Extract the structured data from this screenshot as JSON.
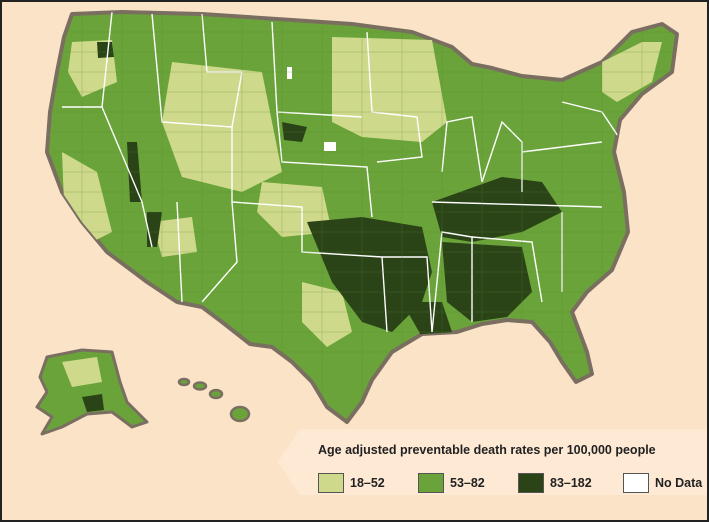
{
  "legend": {
    "title": "Age adjusted preventable death rates per 100,000 people",
    "items": [
      {
        "label": "18–52",
        "color": "#cfd98c"
      },
      {
        "label": "53–82",
        "color": "#6aa33a"
      },
      {
        "label": "83–182",
        "color": "#2a4317"
      },
      {
        "label": "No Data",
        "color": "#ffffff"
      }
    ]
  },
  "colors": {
    "background": "#fbe3c8",
    "land_outline": "#7a6e60",
    "state_border": "#ffffff"
  }
}
